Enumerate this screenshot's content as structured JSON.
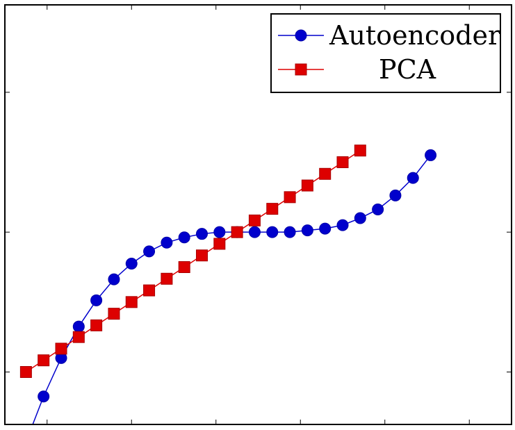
{
  "chart_data": {
    "type": "line",
    "title": "",
    "xlabel": "",
    "ylabel": "",
    "xlim": [
      -1.1,
      1.3
    ],
    "ylim": [
      -1.1,
      1.3
    ],
    "xticks": [
      -0.9,
      -0.5,
      -0.1,
      0.3,
      0.7,
      1.1
    ],
    "yticks": [
      -0.8,
      0,
      0.8
    ],
    "tick_labels_shown": false,
    "grid": false,
    "legend_position": "top-right",
    "series": [
      {
        "name": "Autoencoder",
        "color": "#0000cc",
        "marker": "circle",
        "x": [
          -1.0,
          -0.9167,
          -0.8333,
          -0.75,
          -0.6667,
          -0.5833,
          -0.5,
          -0.4167,
          -0.3333,
          -0.25,
          -0.1667,
          -0.0833,
          0.0,
          0.0833,
          0.1667,
          0.25,
          0.3333,
          0.4167,
          0.5,
          0.5833,
          0.6667,
          0.75,
          0.8333,
          0.9167
        ],
        "y": [
          -1.2,
          -0.94,
          -0.72,
          -0.54,
          -0.39,
          -0.27,
          -0.18,
          -0.11,
          -0.06,
          -0.03,
          -0.01,
          0.0,
          0.0,
          0.0,
          0.0,
          0.0,
          0.01,
          0.02,
          0.04,
          0.08,
          0.13,
          0.21,
          0.31,
          0.44
        ]
      },
      {
        "name": "PCA",
        "color": "#dd0000",
        "marker": "square",
        "x": [
          -1.0,
          -0.9167,
          -0.8333,
          -0.75,
          -0.6667,
          -0.5833,
          -0.5,
          -0.4167,
          -0.3333,
          -0.25,
          -0.1667,
          -0.0833,
          0.0,
          0.0833,
          0.1667,
          0.25,
          0.3333,
          0.4167,
          0.5,
          0.5833
        ],
        "y": [
          -0.8,
          -0.7333,
          -0.6667,
          -0.6,
          -0.5333,
          -0.4667,
          -0.4,
          -0.3333,
          -0.2667,
          -0.2,
          -0.1333,
          -0.0667,
          0.0,
          0.0667,
          0.1333,
          0.2,
          0.2667,
          0.3333,
          0.4,
          0.4667
        ]
      }
    ]
  }
}
